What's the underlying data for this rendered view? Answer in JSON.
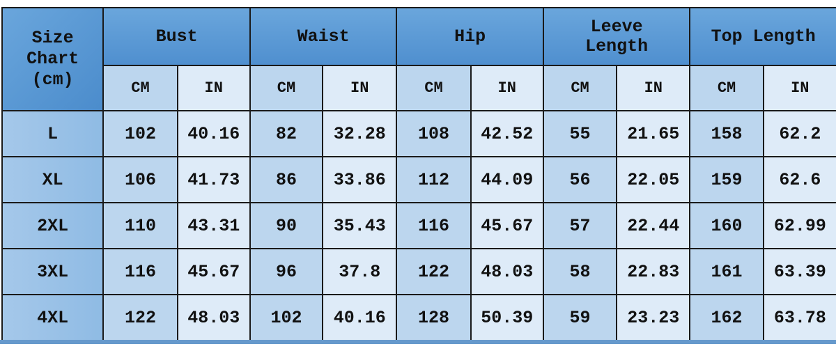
{
  "corner_label": [
    "Size",
    "Chart",
    "(cm)"
  ],
  "groups": [
    "Bust",
    "Waist",
    "Hip",
    "Leeve Length",
    "Top Length"
  ],
  "units": [
    "CM",
    "IN"
  ],
  "rows": [
    {
      "size": "L",
      "values": [
        "102",
        "40.16",
        "82",
        "32.28",
        "108",
        "42.52",
        "55",
        "21.65",
        "158",
        "62.2"
      ]
    },
    {
      "size": "XL",
      "values": [
        "106",
        "41.73",
        "86",
        "33.86",
        "112",
        "44.09",
        "56",
        "22.05",
        "159",
        "62.6"
      ]
    },
    {
      "size": "2XL",
      "values": [
        "110",
        "43.31",
        "90",
        "35.43",
        "116",
        "45.67",
        "57",
        "22.44",
        "160",
        "62.99"
      ]
    },
    {
      "size": "3XL",
      "values": [
        "116",
        "45.67",
        "96",
        "37.8",
        "122",
        "48.03",
        "58",
        "22.83",
        "161",
        "63.39"
      ]
    },
    {
      "size": "4XL",
      "values": [
        "122",
        "48.03",
        "102",
        "40.16",
        "128",
        "50.39",
        "59",
        "23.23",
        "162",
        "63.78"
      ]
    }
  ],
  "colors": {
    "header": "#5b9bd5",
    "size_column": "#9dc3e6",
    "cm_column": "#bcd6ee",
    "in_column": "#deebf8",
    "border": "#1a1a1a"
  }
}
